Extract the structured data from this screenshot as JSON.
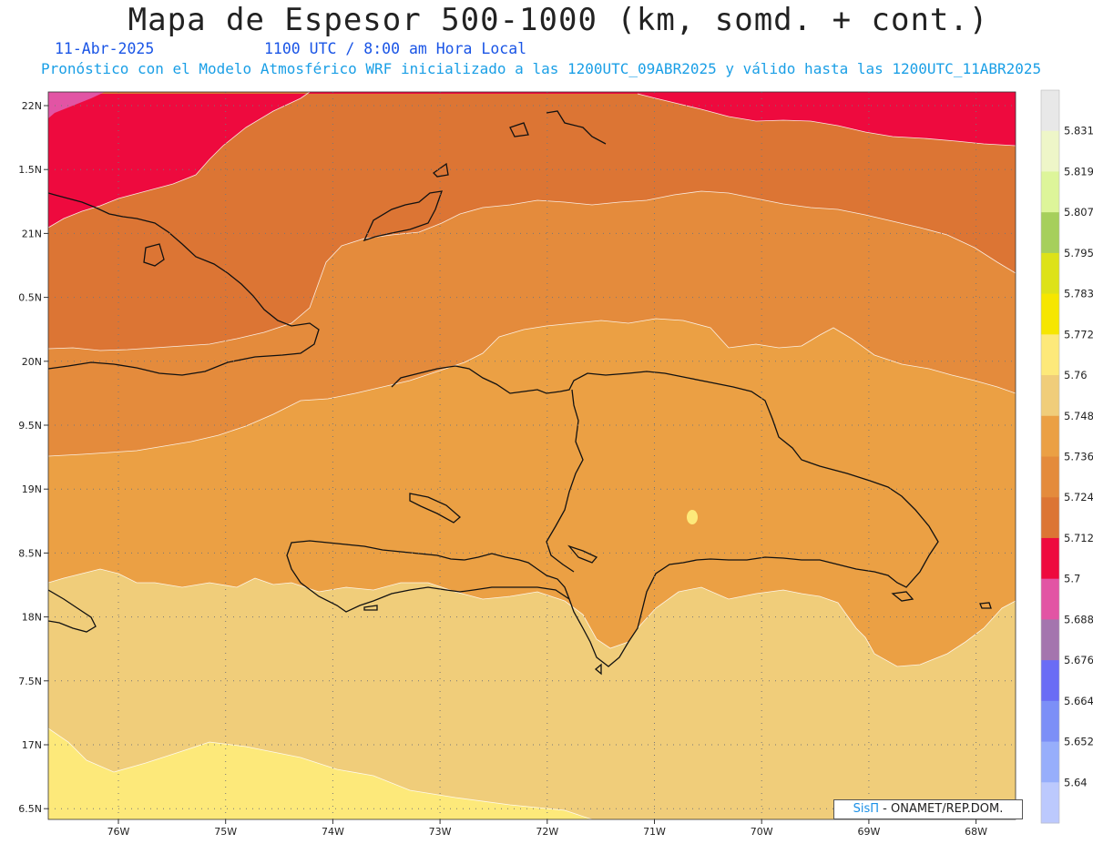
{
  "title": "Mapa de Espesor 500-1000 (km, somd. + cont.)",
  "date": "11-Abr-2025",
  "time": "1100 UTC / 8:00 am Hora Local",
  "forecast": "Pronóstico con el Modelo Atmosférico WRF inicializado a las 1200UTC_09ABR2025 y válido hasta las  1200UTC_11ABR2025",
  "credit": {
    "brand": "SisΠ",
    "org": "- ONAMET/REP.DOM."
  },
  "lat_labels": [
    "22N",
    "1.5N",
    "21N",
    "0.5N",
    "20N",
    "9.5N",
    "19N",
    "8.5N",
    "18N",
    "7.5N",
    "17N",
    "6.5N"
  ],
  "lon_labels": [
    "76W",
    "75W",
    "74W",
    "73W",
    "72W",
    "71W",
    "70W",
    "69W",
    "68W"
  ],
  "colorbar": {
    "labels": [
      "5.831",
      "5.819",
      "5.807",
      "5.795",
      "5.783",
      "5.772",
      "5.76",
      "5.748",
      "5.736",
      "5.724",
      "5.712",
      "5.7",
      "5.688",
      "5.676",
      "5.664",
      "5.652",
      "5.64"
    ],
    "colors": [
      "#e8e8e8",
      "#eef6c8",
      "#ddf59a",
      "#a6cf5c",
      "#dde218",
      "#f6e600",
      "#fde97a",
      "#f0cd7a",
      "#eba044",
      "#e48b3c",
      "#dc7534",
      "#ee0a3e",
      "#e254a4",
      "#a475ae",
      "#6a6cf5",
      "#7c8ff7",
      "#97aefb",
      "#bcc9fd"
    ]
  },
  "fill_colors": {
    "magenta": "#e254a4",
    "red": "#ee0a3e",
    "dark_orange": "#dc7534",
    "orange": "#e48b3c",
    "light_orange": "#eba044",
    "tan": "#f0cd7a",
    "yellow": "#fde97a"
  }
}
